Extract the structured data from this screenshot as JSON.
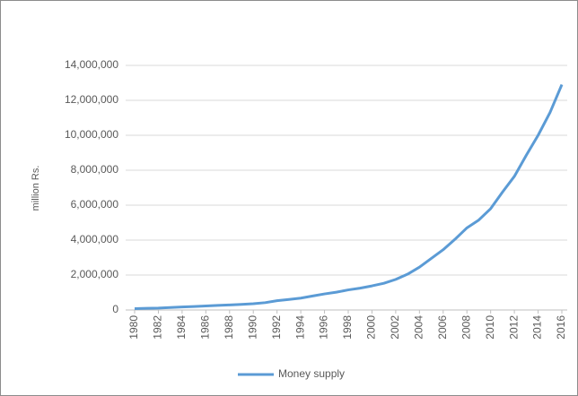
{
  "chart_data": {
    "type": "line",
    "y_label": "million Rs.",
    "x": [
      1980,
      1981,
      1982,
      1983,
      1984,
      1985,
      1986,
      1987,
      1988,
      1989,
      1990,
      1991,
      1992,
      1993,
      1994,
      1995,
      1996,
      1997,
      1998,
      1999,
      2000,
      2001,
      2002,
      2003,
      2004,
      2005,
      2006,
      2007,
      2008,
      2009,
      2010,
      2011,
      2012,
      2013,
      2014,
      2015,
      2016
    ],
    "series": [
      {
        "name": "Money supply",
        "color": "#5b9bd5",
        "values": [
          80000,
          95000,
          110000,
          140000,
          170000,
          200000,
          230000,
          260000,
          290000,
          320000,
          360000,
          420000,
          530000,
          600000,
          680000,
          800000,
          920000,
          1020000,
          1150000,
          1250000,
          1380000,
          1530000,
          1750000,
          2050000,
          2450000,
          2950000,
          3450000,
          4050000,
          4700000,
          5150000,
          5800000,
          6750000,
          7650000,
          8850000,
          10000000,
          11300000,
          12900000
        ]
      }
    ],
    "xlim": [
      1980,
      2016
    ],
    "xticks": [
      1980,
      1982,
      1984,
      1986,
      1988,
      1990,
      1992,
      1994,
      1996,
      1998,
      2000,
      2002,
      2004,
      2006,
      2008,
      2010,
      2012,
      2014,
      2016
    ],
    "ylim": [
      0,
      14000000
    ],
    "yticks": [
      0,
      {
        "value": 2000000,
        "label": "2,000,000"
      },
      {
        "value": 4000000,
        "label": "4,000,000"
      },
      {
        "value": 6000000,
        "label": "6,000,000"
      },
      {
        "value": 8000000,
        "label": "8,000,000"
      },
      {
        "value": 10000000,
        "label": "10,000,000"
      },
      {
        "value": 12000000,
        "label": "12,000,000"
      },
      {
        "value": 14000000,
        "label": "14,000,000"
      }
    ],
    "grid": true,
    "legend": "bottom"
  }
}
